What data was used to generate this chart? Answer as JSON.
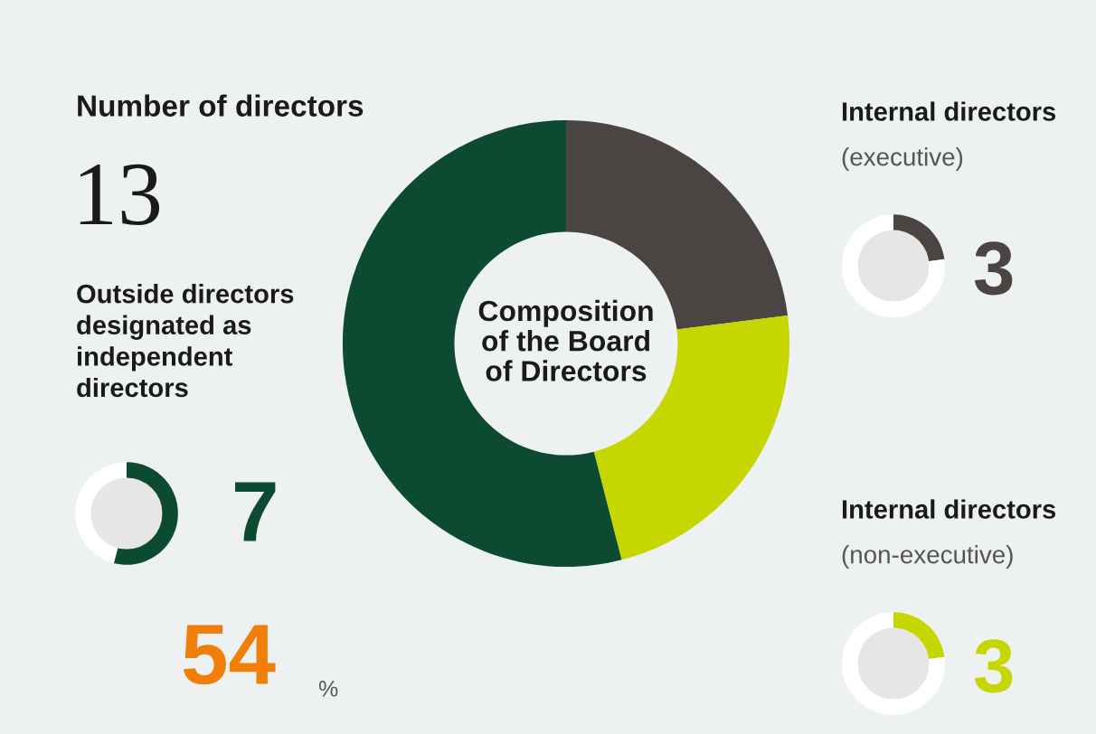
{
  "chart_data": [
    {
      "type": "donut",
      "title": "Composition of the Board of Directors",
      "categories": [
        null,
        null,
        null
      ],
      "values": [
        23,
        23,
        54
      ],
      "colors": [
        "#4a4543",
        "#c5d600",
        "#0d4a32"
      ],
      "annotations": [
        "Number of directors",
        "13"
      ]
    },
    {
      "type": "donut",
      "title": "Internal directors",
      "subtitle": "(executive)",
      "categories": [
        null,
        null
      ],
      "values": [
        23,
        77
      ],
      "colors": [
        "#4a4543",
        "#ffffff"
      ],
      "annotations": [
        "3"
      ]
    },
    {
      "type": "donut",
      "title": "Internal directors",
      "subtitle": "(non-executive)",
      "categories": [
        null,
        null
      ],
      "values": [
        23,
        77
      ],
      "colors": [
        "#c5d600",
        "#ffffff"
      ],
      "annotations": [
        "3"
      ]
    },
    {
      "type": "donut",
      "title": "Outside directors designated as independent directors",
      "categories": [
        null,
        null
      ],
      "values": [
        54,
        46
      ],
      "colors": [
        "#0d4a32",
        "#ffffff"
      ],
      "annotations": [
        "7",
        "54",
        "%"
      ]
    }
  ]
}
